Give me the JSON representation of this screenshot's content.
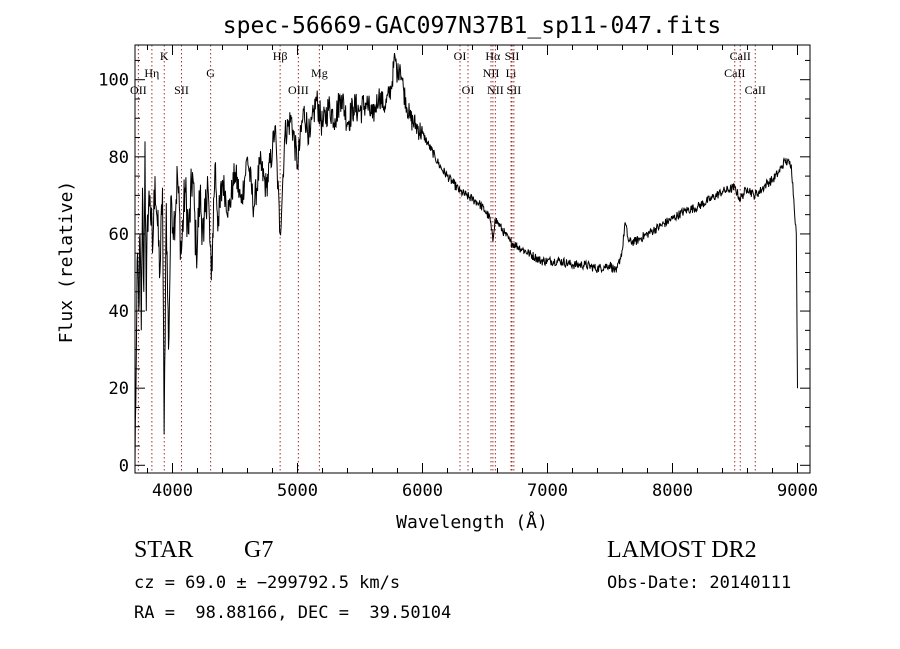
{
  "chart_data": {
    "type": "line",
    "title": "spec-56669-GAC097N37B1_sp11-047.fits",
    "xlabel": "Wavelength (Å)",
    "ylabel": "Flux (relative)",
    "xlim": [
      3700,
      9100
    ],
    "ylim": [
      -2,
      109
    ],
    "xticks": [
      4000,
      5000,
      6000,
      7000,
      8000,
      9000
    ],
    "yticks": [
      0,
      20,
      40,
      60,
      80,
      100
    ],
    "grid": false,
    "line_color": "#000000",
    "marker_color": "#a0322d",
    "spectrum": {
      "x": [
        3700,
        3710,
        3720,
        3730,
        3740,
        3750,
        3760,
        3770,
        3780,
        3790,
        3800,
        3820,
        3840,
        3860,
        3880,
        3900,
        3920,
        3933,
        3950,
        3968,
        3990,
        4010,
        4040,
        4070,
        4100,
        4130,
        4160,
        4190,
        4220,
        4250,
        4280,
        4310,
        4340,
        4370,
        4400,
        4450,
        4500,
        4550,
        4600,
        4650,
        4700,
        4750,
        4800,
        4820,
        4861,
        4900,
        4950,
        5000,
        5050,
        5100,
        5150,
        5200,
        5250,
        5300,
        5350,
        5400,
        5450,
        5500,
        5550,
        5600,
        5650,
        5700,
        5750,
        5780,
        5800,
        5820,
        5850,
        5900,
        5950,
        6000,
        6050,
        6100,
        6150,
        6200,
        6250,
        6300,
        6350,
        6400,
        6450,
        6500,
        6540,
        6563,
        6580,
        6620,
        6660,
        6700,
        6750,
        6800,
        6850,
        6900,
        6950,
        7000,
        7100,
        7200,
        7300,
        7400,
        7500,
        7550,
        7600,
        7620,
        7650,
        7700,
        7750,
        7800,
        7900,
        8000,
        8100,
        8200,
        8300,
        8400,
        8500,
        8540,
        8600,
        8650,
        8700,
        8750,
        8800,
        8850,
        8900,
        8950,
        8990,
        9000
      ],
      "y": [
        0,
        28,
        55,
        40,
        60,
        35,
        72,
        45,
        84,
        40,
        65,
        70,
        55,
        75,
        62,
        50,
        72,
        8,
        68,
        30,
        70,
        62,
        75,
        55,
        72,
        60,
        76,
        55,
        70,
        58,
        75,
        48,
        78,
        62,
        74,
        66,
        76,
        68,
        80,
        67,
        78,
        72,
        82,
        88,
        60,
        86,
        90,
        78,
        92,
        85,
        95,
        88,
        93,
        90,
        96,
        89,
        93,
        92,
        94,
        90,
        96,
        93,
        98,
        106,
        101,
        104,
        97,
        90,
        88,
        86,
        83,
        80,
        77,
        75,
        73,
        71,
        70,
        69,
        68,
        66,
        64,
        58,
        64,
        62,
        60,
        58,
        57,
        56,
        55,
        54,
        53,
        53,
        53,
        52,
        52,
        51,
        52,
        50,
        56,
        63,
        58,
        58,
        59,
        60,
        62,
        64,
        66,
        67,
        69,
        71,
        72,
        69,
        72,
        70,
        71,
        73,
        74,
        76,
        79,
        78,
        60,
        20
      ]
    },
    "line_markers": [
      {
        "label": "OII",
        "wavelength": 3727,
        "row": 2
      },
      {
        "label": "Hη",
        "wavelength": 3835,
        "row": 1
      },
      {
        "label": "K",
        "wavelength": 3934,
        "row": 0
      },
      {
        "label": "SII",
        "wavelength": 4072,
        "row": 2
      },
      {
        "label": "G",
        "wavelength": 4305,
        "row": 1
      },
      {
        "label": "Hβ",
        "wavelength": 4861,
        "row": 0
      },
      {
        "label": "OIII",
        "wavelength": 5007,
        "row": 2
      },
      {
        "label": "Mg",
        "wavelength": 5175,
        "row": 1
      },
      {
        "label": "OI",
        "wavelength": 6300,
        "row": 0
      },
      {
        "label": "OI",
        "wavelength": 6364,
        "row": 2
      },
      {
        "label": "Hα",
        "wavelength": 6563,
        "row": 0
      },
      {
        "label": "NII",
        "wavelength": 6548,
        "row": 1
      },
      {
        "label": "NII",
        "wavelength": 6583,
        "row": 2
      },
      {
        "label": "SII",
        "wavelength": 6716,
        "row": 0
      },
      {
        "label": "Li",
        "wavelength": 6708,
        "row": 1
      },
      {
        "label": "SII",
        "wavelength": 6731,
        "row": 2
      },
      {
        "label": "CaII",
        "wavelength": 8542,
        "row": 0
      },
      {
        "label": "CaII",
        "wavelength": 8498,
        "row": 1
      },
      {
        "label": "CaII",
        "wavelength": 8662,
        "row": 2
      }
    ]
  },
  "info": {
    "object_class": "STAR",
    "subclass": "G7",
    "cz_line": "cz = 69.0 ± −299792.5 km/s",
    "coords_line": "RA =  98.88166, DEC =  39.50104",
    "survey": "LAMOST DR2",
    "obs_date": "Obs-Date: 20140111"
  }
}
